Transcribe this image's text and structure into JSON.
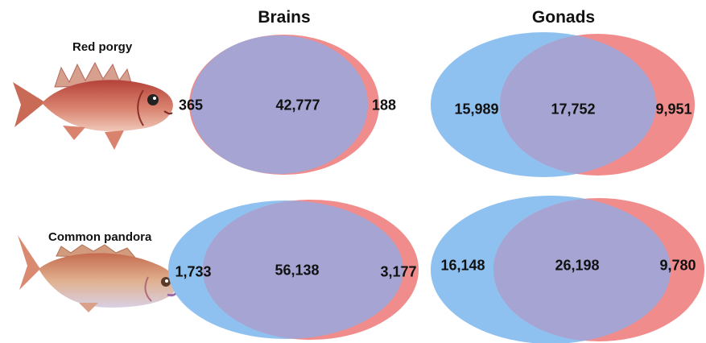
{
  "columns": {
    "brains": "Brains",
    "gonads": "Gonads"
  },
  "rows": [
    {
      "species": "Red porgy",
      "brains": {
        "left_only": "365",
        "shared": "42,777",
        "right_only": "188"
      },
      "gonads": {
        "left_only": "15,989",
        "shared": "17,752",
        "right_only": "9,951"
      }
    },
    {
      "species": "Common pandora",
      "brains": {
        "left_only": "1,733",
        "shared": "56,138",
        "right_only": "3,177"
      },
      "gonads": {
        "left_only": "16,148",
        "shared": "26,198",
        "right_only": "9,780"
      }
    }
  ],
  "colors": {
    "left_set": "#8fc1f0",
    "right_set": "#f08c8c",
    "overlap": "#a5a4d3"
  }
}
